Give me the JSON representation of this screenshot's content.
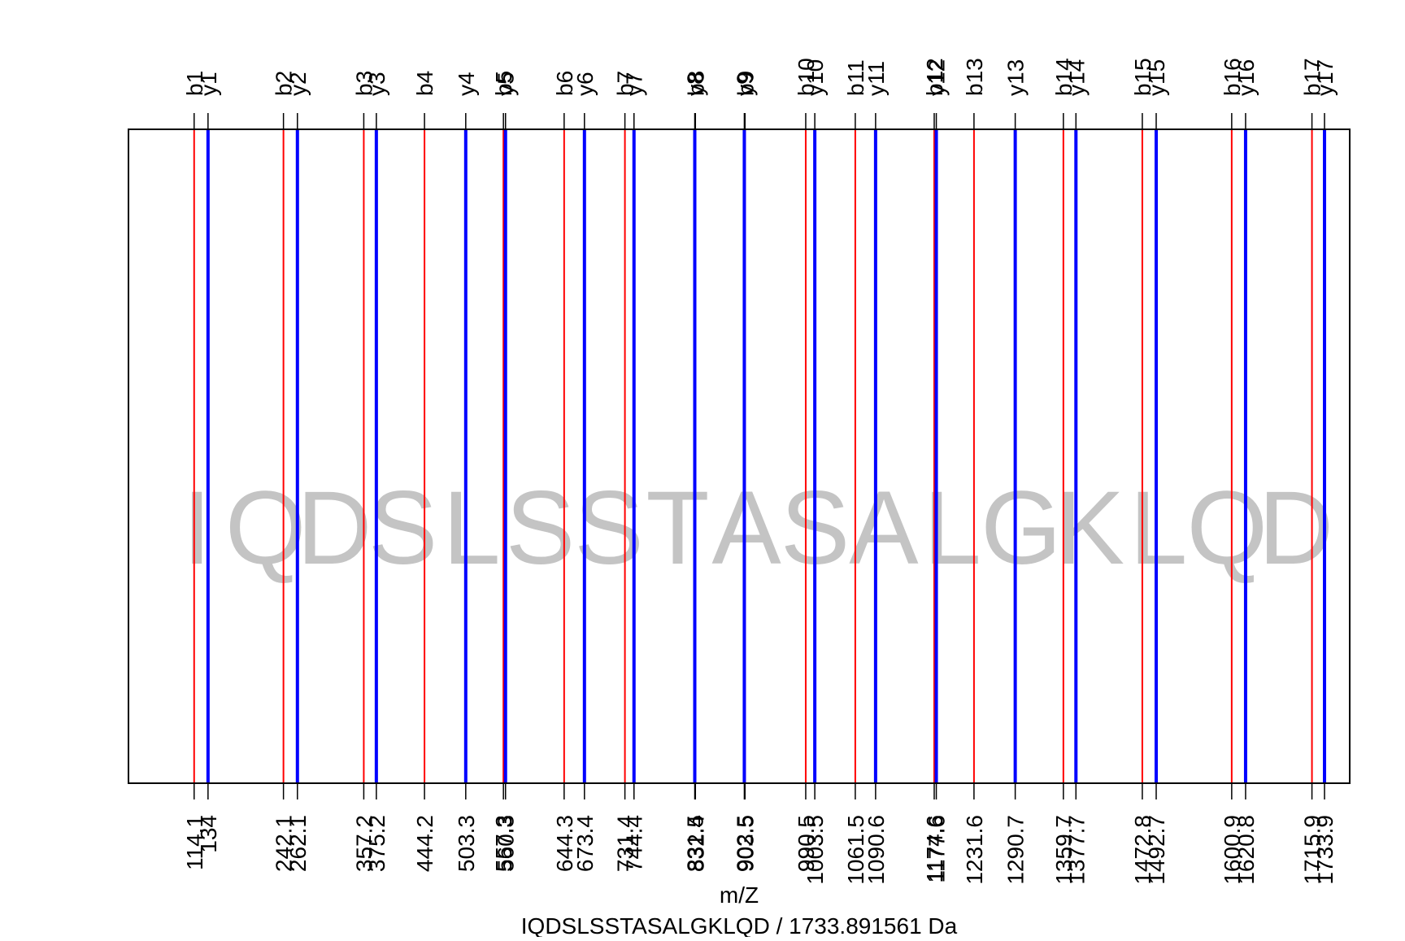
{
  "chart_data": {
    "type": "spectrum-ladder",
    "xlabel": "m/Z",
    "subtitle": "IQDSLSSTASALGKLQD / 1733.891561 Da",
    "sequence": [
      "I",
      "Q",
      "D",
      "S",
      "L",
      "S",
      "S",
      "T",
      "A",
      "S",
      "A",
      "L",
      "G",
      "K",
      "L",
      "Q",
      "D"
    ],
    "xlim": [
      20,
      1770
    ],
    "colors": {
      "b": "#ff0000",
      "y": "#0000ff",
      "frame": "#000000",
      "sequence": "#c4c4c4"
    },
    "b_ions": [
      {
        "label": "b1",
        "mz": 114.1,
        "tick": "114.1"
      },
      {
        "label": "b2",
        "mz": 242.1,
        "tick": "242.1"
      },
      {
        "label": "b3",
        "mz": 357.2,
        "tick": "357.2"
      },
      {
        "label": "b4",
        "mz": 444.2,
        "tick": "444.2"
      },
      {
        "label": "b5",
        "mz": 557.3,
        "tick": "557.3"
      },
      {
        "label": "b6",
        "mz": 644.3,
        "tick": "644.3"
      },
      {
        "label": "b7",
        "mz": 731.4,
        "tick": "731.4"
      },
      {
        "label": "b8",
        "mz": 832.4,
        "tick": "832.4"
      },
      {
        "label": "b9",
        "mz": 903.5,
        "tick": "903.5"
      },
      {
        "label": "b10",
        "mz": 990.5,
        "tick": "990.5"
      },
      {
        "label": "b11",
        "mz": 1061.5,
        "tick": "1061.5"
      },
      {
        "label": "b12",
        "mz": 1174.6,
        "tick": "1174.6"
      },
      {
        "label": "b13",
        "mz": 1231.6,
        "tick": "1231.6"
      },
      {
        "label": "b14",
        "mz": 1359.7,
        "tick": "1359.7"
      },
      {
        "label": "b15",
        "mz": 1472.8,
        "tick": "1472.8"
      },
      {
        "label": "b16",
        "mz": 1600.9,
        "tick": "1600.9"
      },
      {
        "label": "b17",
        "mz": 1715.9,
        "tick": "1715.9"
      }
    ],
    "y_ions": [
      {
        "label": "y1",
        "mz": 134,
        "tick": "134"
      },
      {
        "label": "y2",
        "mz": 262.1,
        "tick": "262.1"
      },
      {
        "label": "y3",
        "mz": 375.2,
        "tick": "375.2"
      },
      {
        "label": "y4",
        "mz": 503.3,
        "tick": "503.3"
      },
      {
        "label": "y5",
        "mz": 560.3,
        "tick": "560.3"
      },
      {
        "label": "y6",
        "mz": 673.4,
        "tick": "673.4"
      },
      {
        "label": "y7",
        "mz": 744.4,
        "tick": "744.4"
      },
      {
        "label": "y8",
        "mz": 831.5,
        "tick": "831.5"
      },
      {
        "label": "y9",
        "mz": 902.5,
        "tick": "902.5"
      },
      {
        "label": "y10",
        "mz": 1003.5,
        "tick": "1003.5"
      },
      {
        "label": "y11",
        "mz": 1090.6,
        "tick": "1090.6"
      },
      {
        "label": "y12",
        "mz": 1177.6,
        "tick": "1177.6"
      },
      {
        "label": "y13",
        "mz": 1290.7,
        "tick": "1290.7"
      },
      {
        "label": "y14",
        "mz": 1377.7,
        "tick": "1377.7"
      },
      {
        "label": "y15",
        "mz": 1492.7,
        "tick": "1492.7"
      },
      {
        "label": "y16",
        "mz": 1620.8,
        "tick": "1620.8"
      },
      {
        "label": "y17",
        "mz": 1733.9,
        "tick": "1733.9"
      }
    ]
  }
}
